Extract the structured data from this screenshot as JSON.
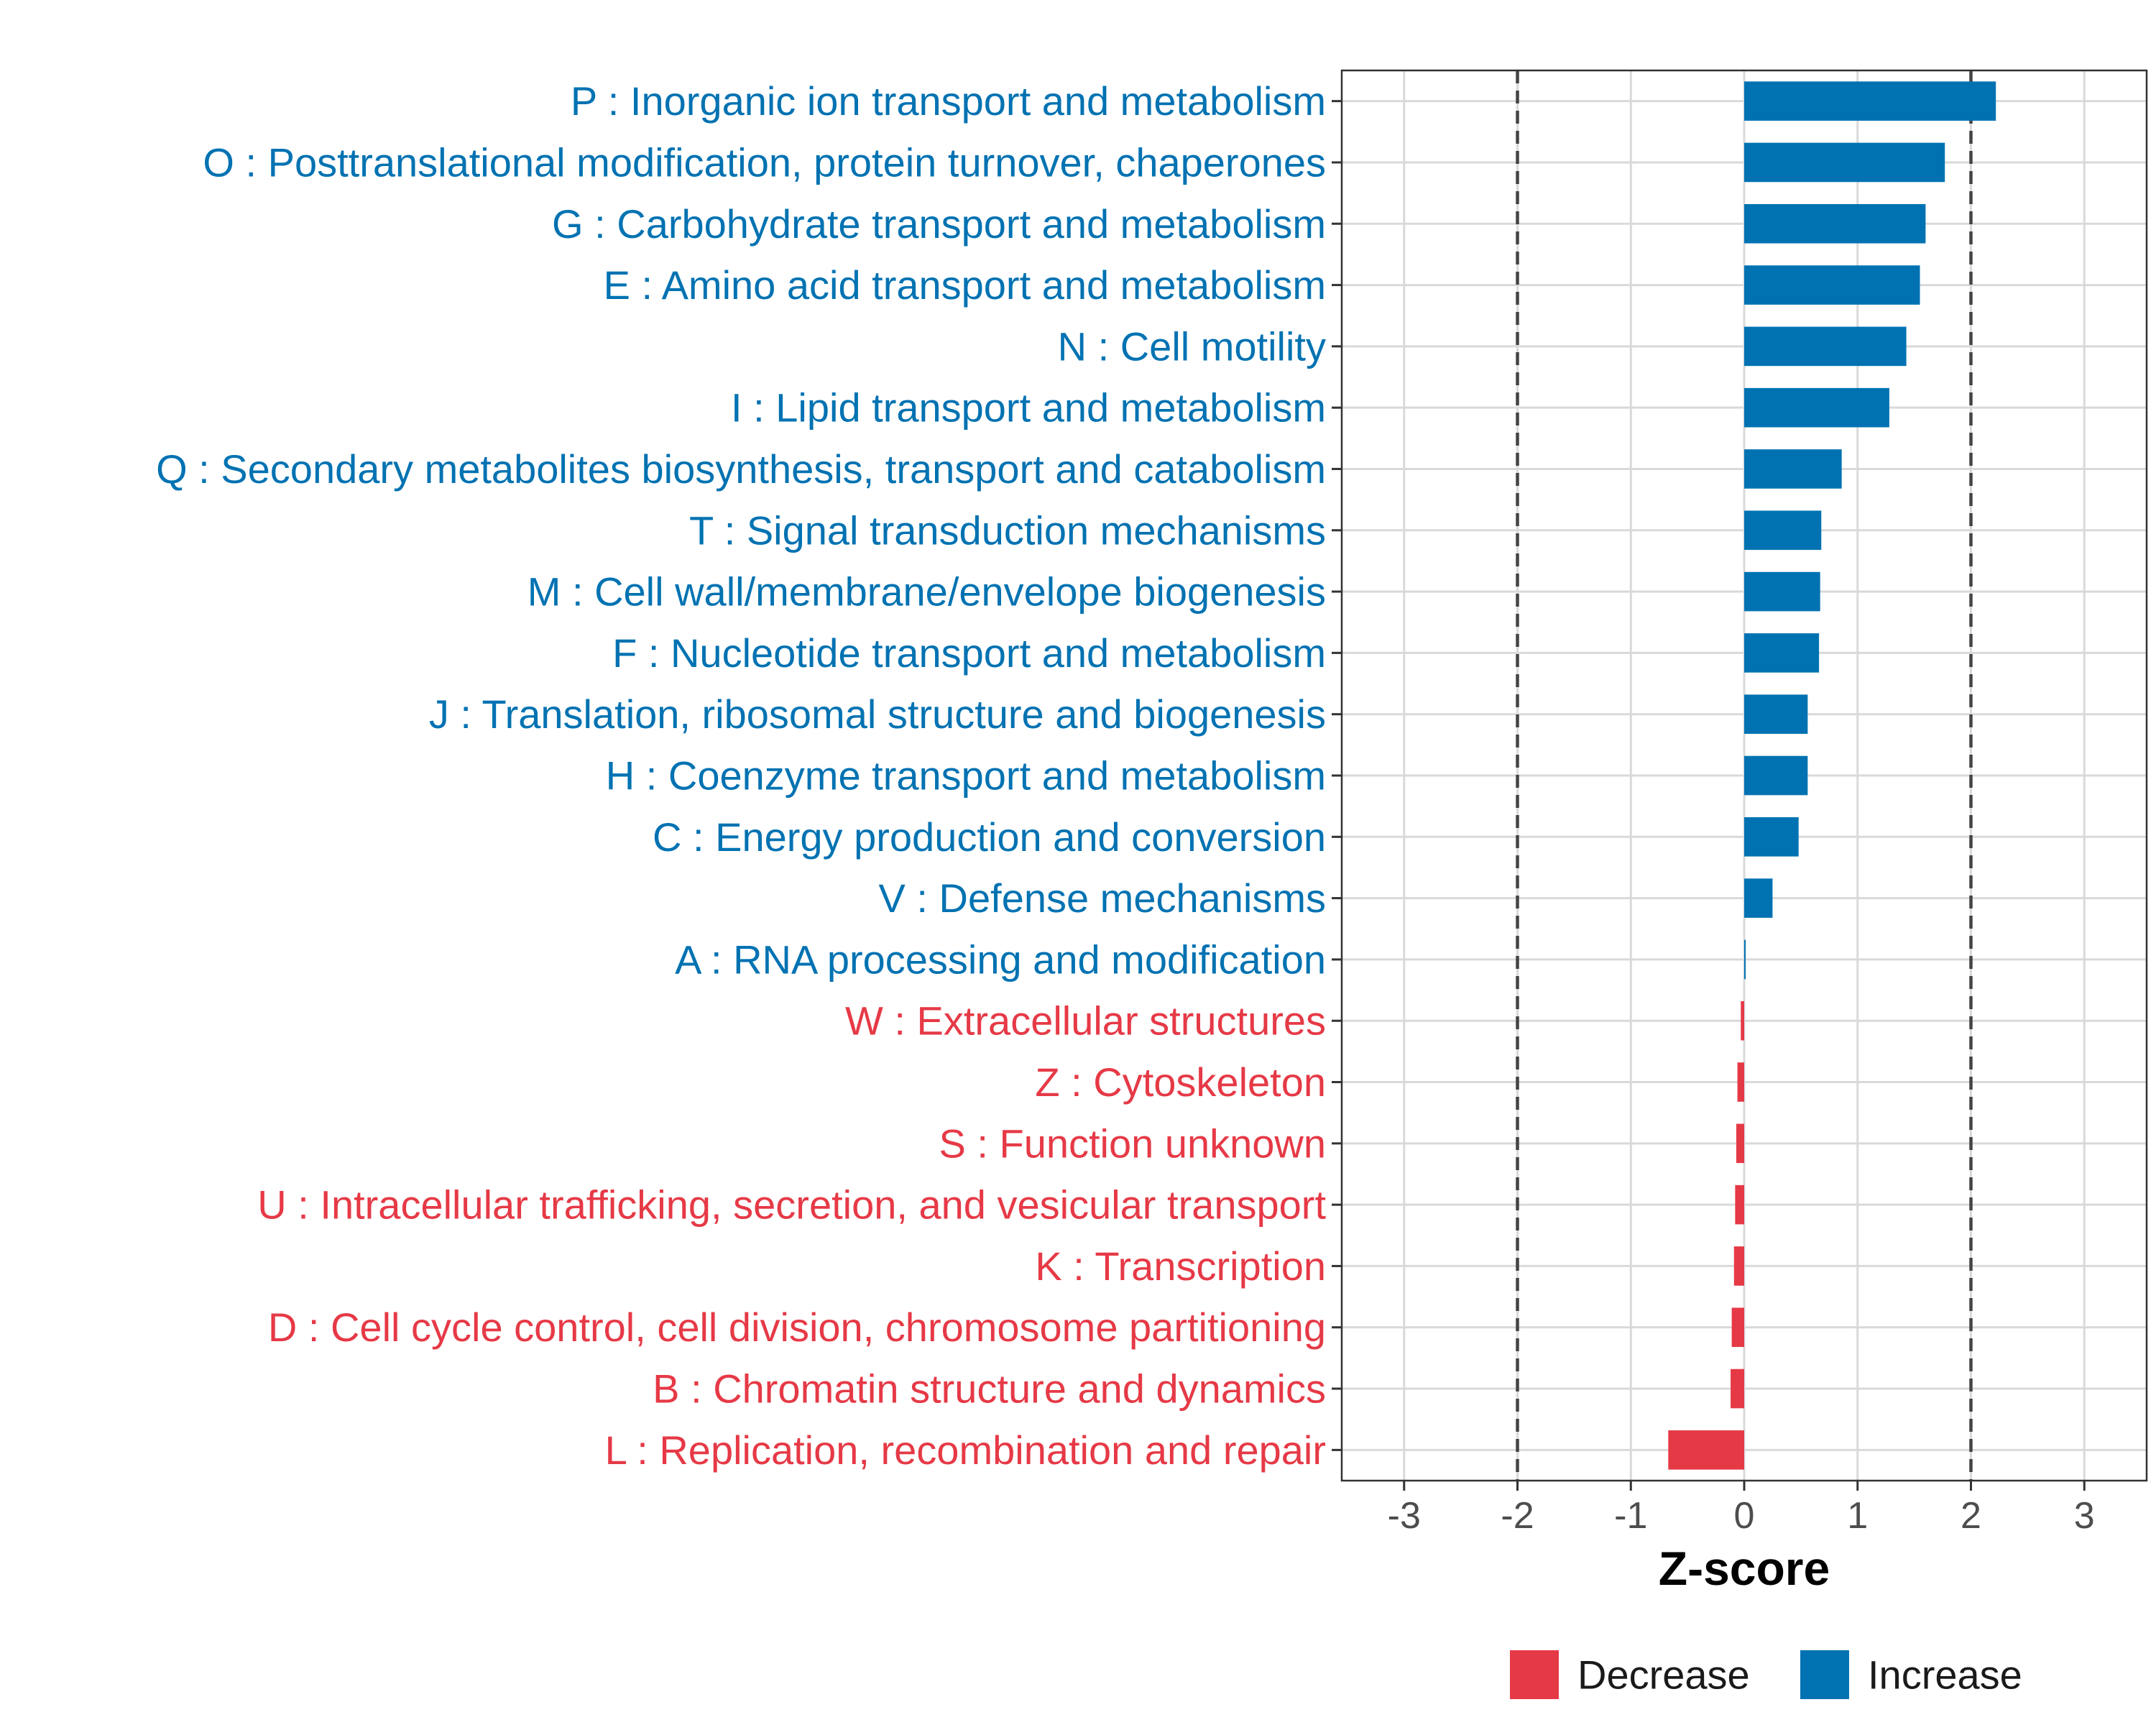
{
  "chart_data": {
    "type": "bar",
    "orientation": "horizontal",
    "xlabel": "Z-score",
    "ylabel": "",
    "xlim": [
      -3.55,
      3.55
    ],
    "xticks": [
      -3,
      -2,
      -1,
      0,
      1,
      2,
      3
    ],
    "xtick_labels": [
      "-3",
      "-2",
      "-1",
      "0",
      "1",
      "2",
      "3"
    ],
    "reference_lines": [
      -2,
      2
    ],
    "grid": true,
    "legend_position": "bottom",
    "colors": {
      "Increase": "#0072B2",
      "Decrease": "#E63946"
    },
    "legend": [
      {
        "label": "Decrease",
        "color": "#E63946"
      },
      {
        "label": "Increase",
        "color": "#0072B2"
      }
    ],
    "categories": [
      "P : Inorganic ion transport and metabolism",
      "O : Posttranslational modification, protein turnover, chaperones",
      "G : Carbohydrate transport and metabolism",
      "E : Amino acid transport and metabolism",
      "N : Cell motility",
      "I : Lipid transport and metabolism",
      "Q : Secondary metabolites biosynthesis, transport and catabolism",
      "T : Signal transduction mechanisms",
      "M : Cell wall/membrane/envelope biogenesis",
      "F : Nucleotide transport and metabolism",
      "J : Translation, ribosomal structure and biogenesis",
      "H : Coenzyme transport and metabolism",
      "C : Energy production and conversion",
      "V : Defense mechanisms",
      "A : RNA processing and modification",
      "W : Extracellular structures",
      "Z : Cytoskeleton",
      "S : Function unknown",
      "U : Intracellular trafficking, secretion, and vesicular transport",
      "K : Transcription",
      "D : Cell cycle control, cell division, chromosome partitioning",
      "B : Chromatin structure and dynamics",
      "L : Replication, recombination and repair"
    ],
    "values": [
      2.22,
      1.77,
      1.6,
      1.55,
      1.43,
      1.28,
      0.86,
      0.68,
      0.67,
      0.66,
      0.56,
      0.56,
      0.48,
      0.25,
      0.01,
      -0.03,
      -0.06,
      -0.07,
      -0.08,
      -0.09,
      -0.11,
      -0.12,
      -0.67
    ],
    "groups": [
      "Increase",
      "Increase",
      "Increase",
      "Increase",
      "Increase",
      "Increase",
      "Increase",
      "Increase",
      "Increase",
      "Increase",
      "Increase",
      "Increase",
      "Increase",
      "Increase",
      "Increase",
      "Decrease",
      "Decrease",
      "Decrease",
      "Decrease",
      "Decrease",
      "Decrease",
      "Decrease",
      "Decrease"
    ]
  }
}
